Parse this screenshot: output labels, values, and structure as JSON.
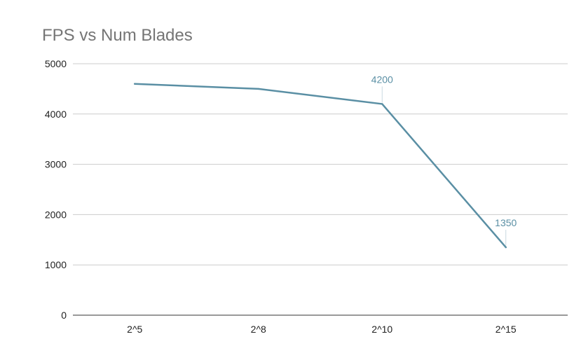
{
  "chart_data": {
    "type": "line",
    "title": "FPS vs Num Blades",
    "xlabel": "",
    "ylabel": "",
    "categories": [
      "2^5",
      "2^8",
      "2^10",
      "2^15"
    ],
    "series": [
      {
        "values": [
          4600,
          4500,
          4200,
          1350
        ],
        "color": "#5a8fa4"
      }
    ],
    "data_labels": [
      {
        "index": 2,
        "text": "4200"
      },
      {
        "index": 3,
        "text": "1350"
      }
    ],
    "yticks": [
      0,
      1000,
      2000,
      3000,
      4000,
      5000
    ],
    "ylim": [
      0,
      5000
    ],
    "grid": true,
    "legend": "none"
  }
}
